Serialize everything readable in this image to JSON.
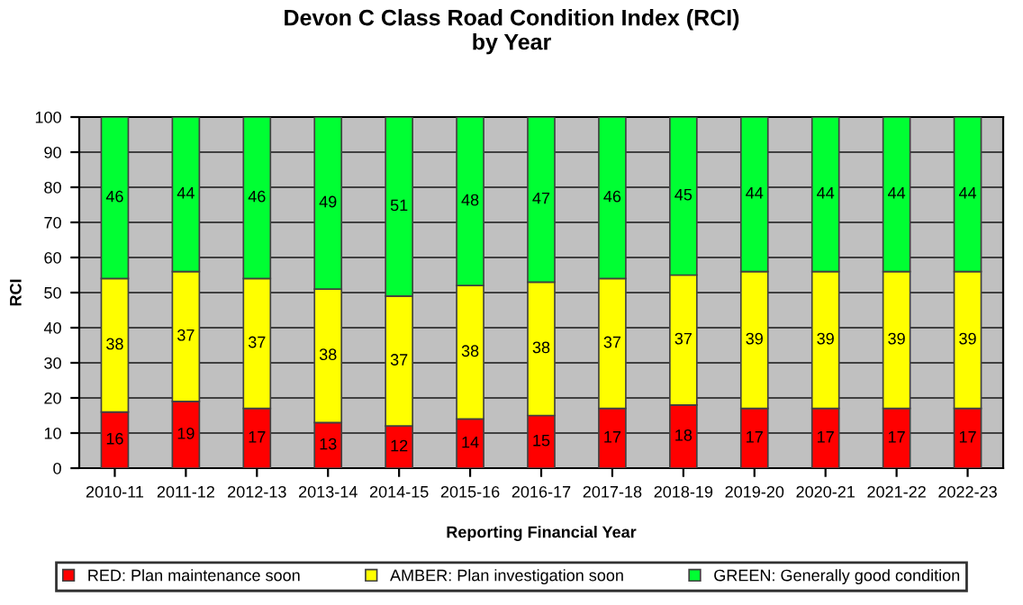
{
  "chart_data": {
    "type": "bar",
    "stacked": true,
    "title": "Devon C Class Road Condition Index (RCI)\nby Year",
    "xlabel": "Reporting Financial Year",
    "ylabel": "RCI",
    "categories": [
      "2010-11",
      "2011-12",
      "2012-13",
      "2013-14",
      "2014-15",
      "2015-16",
      "2016-17",
      "2017-18",
      "2018-19",
      "2019-20",
      "2020-21",
      "2021-22",
      "2022-23"
    ],
    "series": [
      {
        "name": "RED: Plan maintenance soon",
        "color": "#ff0000",
        "values": [
          16,
          19,
          17,
          13,
          12,
          14,
          15,
          17,
          18,
          17,
          17,
          17,
          17
        ]
      },
      {
        "name": "AMBER: Plan investigation soon",
        "color": "#ffff00",
        "values": [
          38,
          37,
          37,
          38,
          37,
          38,
          38,
          37,
          37,
          39,
          39,
          39,
          39
        ]
      },
      {
        "name": "GREEN: Generally good condition",
        "color": "#00ff33",
        "values": [
          46,
          44,
          46,
          49,
          51,
          48,
          47,
          46,
          45,
          44,
          44,
          44,
          44
        ]
      }
    ],
    "ylim": [
      0,
      100
    ],
    "yticks": [
      0,
      10,
      20,
      30,
      40,
      50,
      60,
      70,
      80,
      90,
      100
    ],
    "grid": "y",
    "legend": "bottom",
    "data_labels": true
  }
}
